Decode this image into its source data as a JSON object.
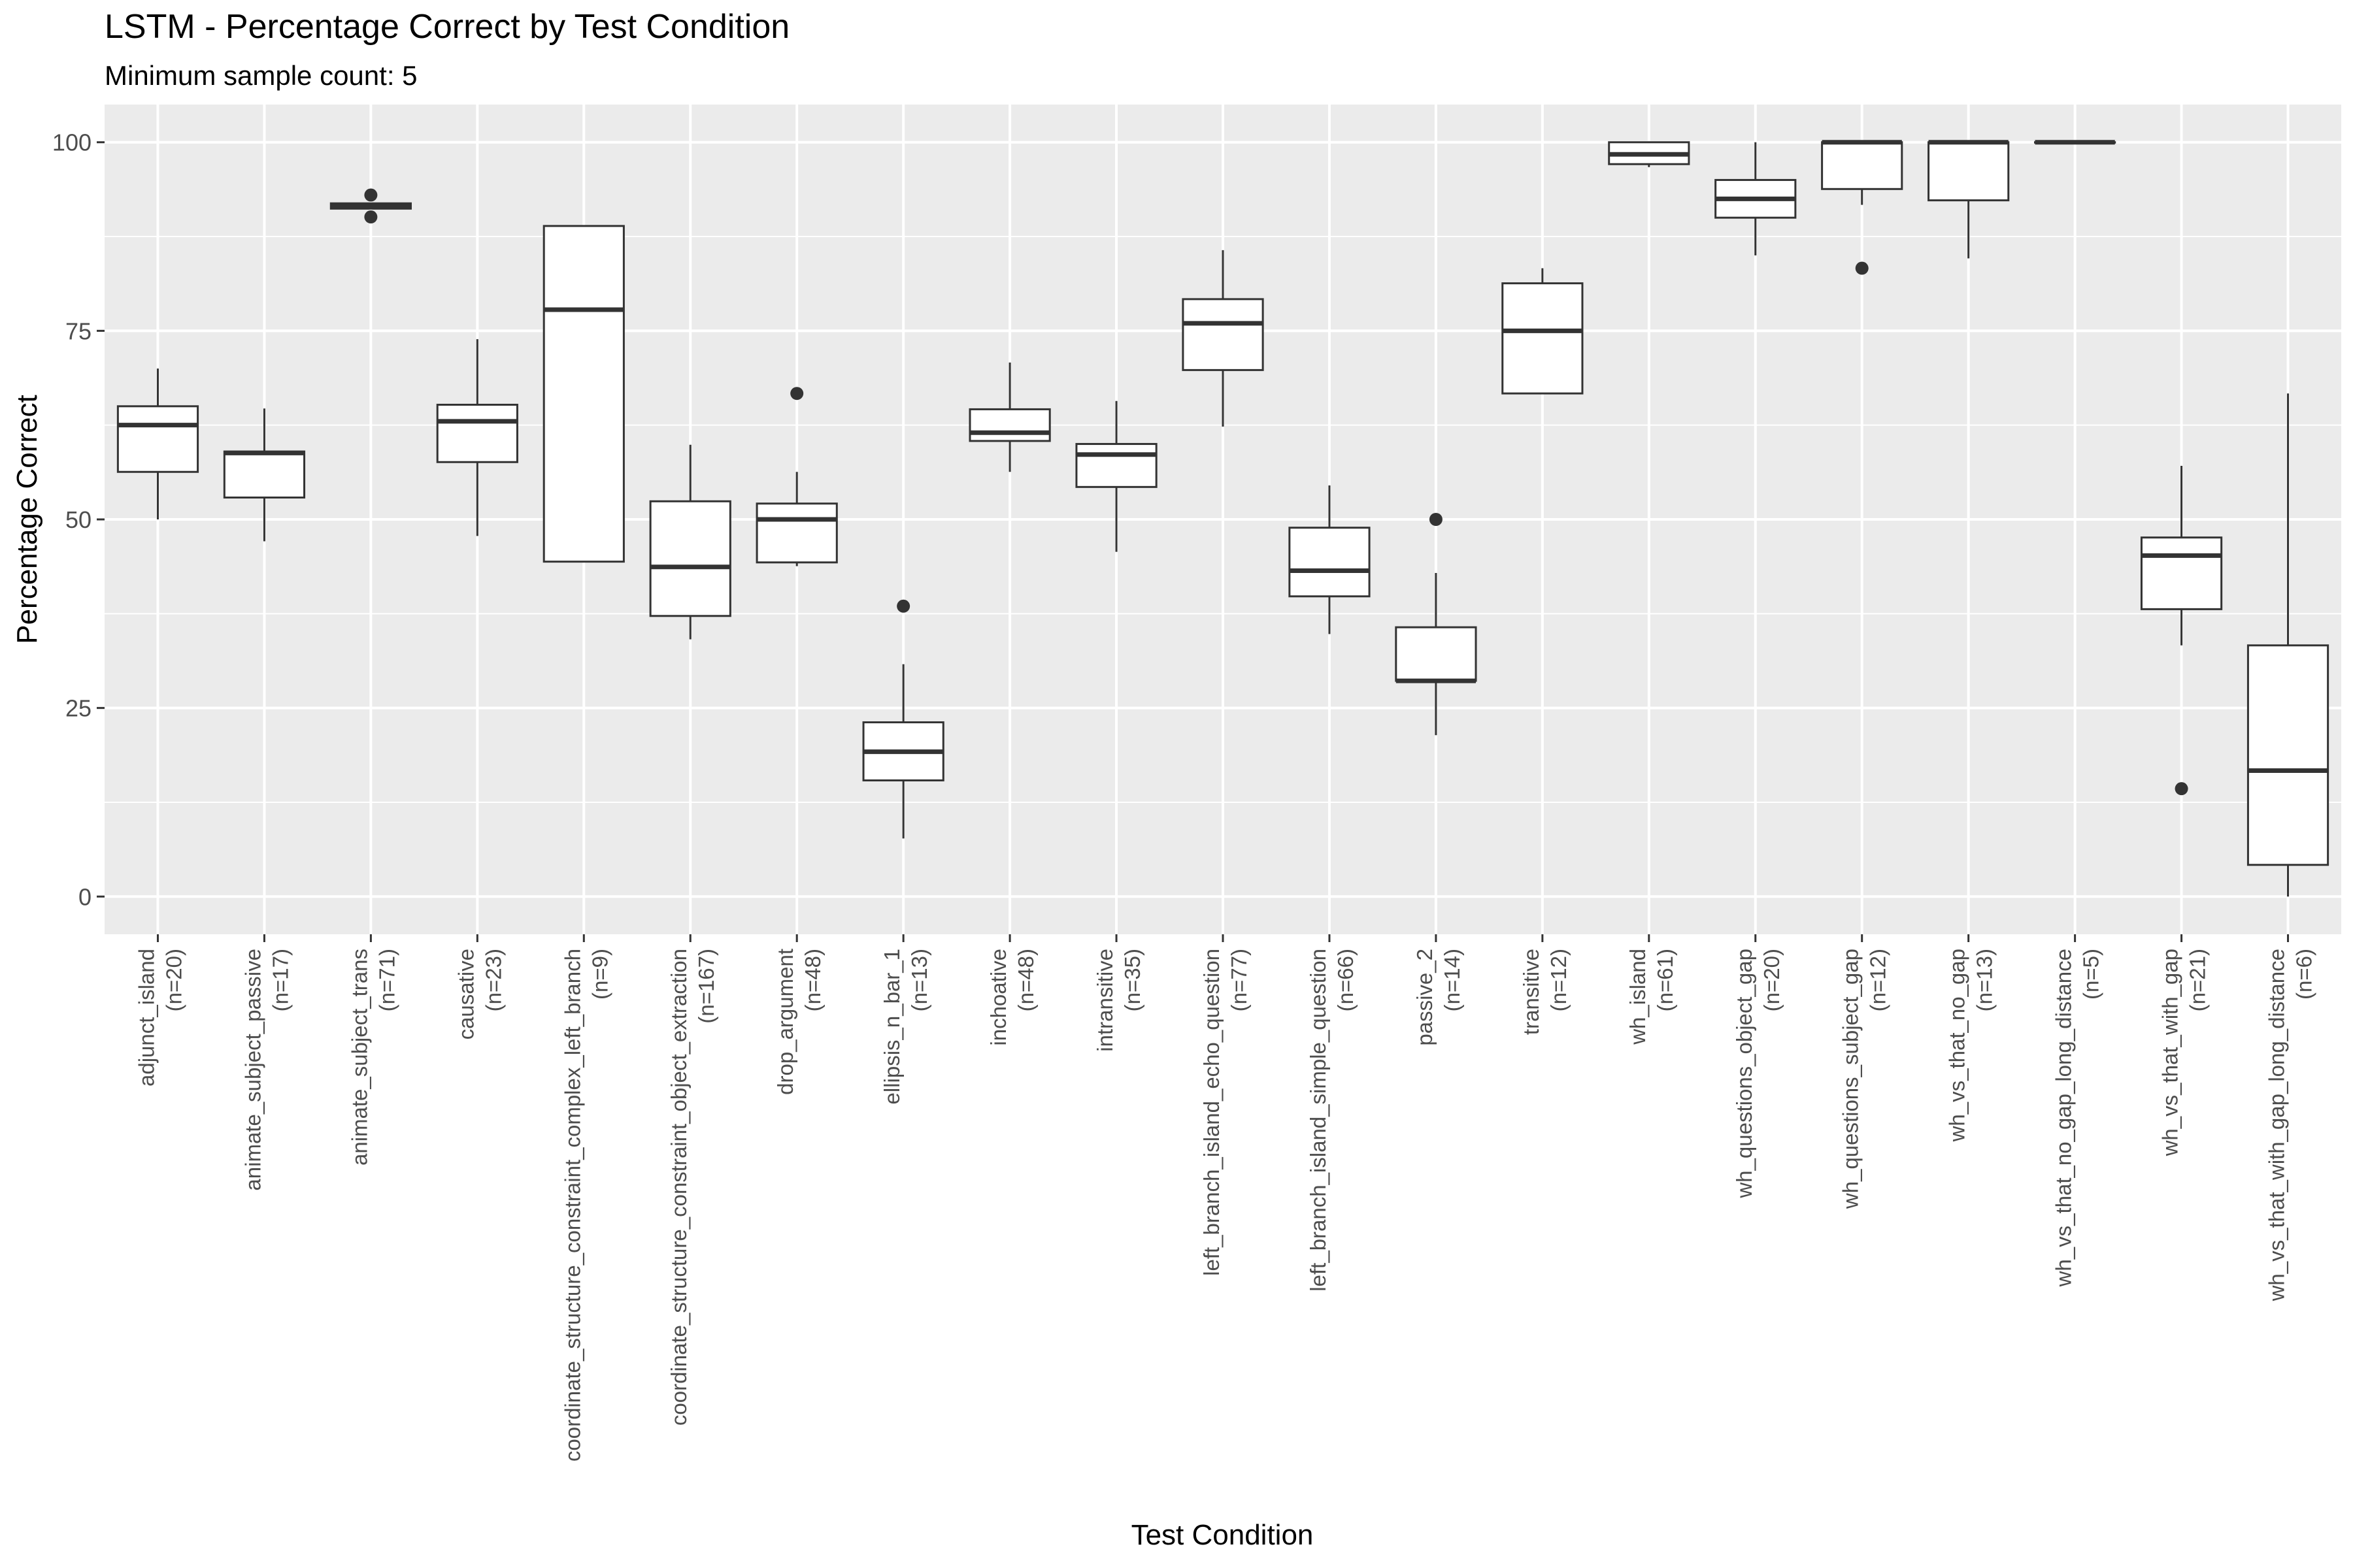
{
  "chart_data": {
    "type": "box",
    "title": "LSTM - Percentage Correct by Test Condition",
    "subtitle": "Minimum sample count: 5",
    "xlabel": "Test Condition",
    "ylabel": "Percentage Correct",
    "ylim": [
      -5,
      105
    ],
    "yticks": [
      0,
      25,
      50,
      75,
      100
    ],
    "grid": true,
    "legend": "none",
    "colors": {
      "panel_background": "#ebebeb",
      "gridline": "#ffffff",
      "box_fill": "#ffffff",
      "box_line": "#333333",
      "tick_text": "#4d4d4d"
    },
    "categories": [
      {
        "name": "adjunct_island",
        "n": "(n=20)",
        "lower_whisker": 50,
        "q1": 56.3,
        "median": 62.5,
        "q3": 65,
        "upper_whisker": 70,
        "outliers": []
      },
      {
        "name": "animate_subject_passive",
        "n": "(n=17)",
        "lower_whisker": 47.1,
        "q1": 52.9,
        "median": 58.8,
        "q3": 59,
        "upper_whisker": 64.7,
        "outliers": []
      },
      {
        "name": "animate_subject_trans",
        "n": "(n=71)",
        "lower_whisker": 91.2,
        "q1": 91.2,
        "median": 91.5,
        "q3": 91.9,
        "upper_whisker": 91.9,
        "outliers": [
          93,
          90.1
        ]
      },
      {
        "name": "causative",
        "n": "(n=23)",
        "lower_whisker": 47.8,
        "q1": 57.6,
        "median": 63,
        "q3": 65.2,
        "upper_whisker": 73.9,
        "outliers": []
      },
      {
        "name": "coordinate_structure_constraint_complex_left_branch",
        "n": "(n=9)",
        "lower_whisker": 44.4,
        "q1": 44.4,
        "median": 77.8,
        "q3": 88.9,
        "upper_whisker": 88.9,
        "outliers": []
      },
      {
        "name": "coordinate_structure_constraint_object_extraction",
        "n": "(n=167)",
        "lower_whisker": 34.1,
        "q1": 37.2,
        "median": 43.7,
        "q3": 52.4,
        "upper_whisker": 59.9,
        "outliers": []
      },
      {
        "name": "drop_argument",
        "n": "(n=48)",
        "lower_whisker": 43.8,
        "q1": 44.3,
        "median": 50,
        "q3": 52.1,
        "upper_whisker": 56.3,
        "outliers": [
          66.7
        ]
      },
      {
        "name": "ellipsis_n_bar_1",
        "n": "(n=13)",
        "lower_whisker": 7.7,
        "q1": 15.4,
        "median": 19.2,
        "q3": 23.1,
        "upper_whisker": 30.8,
        "outliers": [
          38.5
        ]
      },
      {
        "name": "inchoative",
        "n": "(n=48)",
        "lower_whisker": 56.3,
        "q1": 60.4,
        "median": 61.5,
        "q3": 64.6,
        "upper_whisker": 70.8,
        "outliers": []
      },
      {
        "name": "intransitive",
        "n": "(n=35)",
        "lower_whisker": 45.7,
        "q1": 54.3,
        "median": 58.6,
        "q3": 60,
        "upper_whisker": 65.7,
        "outliers": []
      },
      {
        "name": "left_branch_island_echo_question",
        "n": "(n=77)",
        "lower_whisker": 62.3,
        "q1": 69.8,
        "median": 76,
        "q3": 79.2,
        "upper_whisker": 85.7,
        "outliers": []
      },
      {
        "name": "left_branch_island_simple_question",
        "n": "(n=66)",
        "lower_whisker": 34.8,
        "q1": 39.8,
        "median": 43.2,
        "q3": 48.9,
        "upper_whisker": 54.5,
        "outliers": []
      },
      {
        "name": "passive_2",
        "n": "(n=14)",
        "lower_whisker": 21.4,
        "q1": 28.6,
        "median": 28.6,
        "q3": 35.7,
        "upper_whisker": 42.9,
        "outliers": [
          50
        ]
      },
      {
        "name": "transitive",
        "n": "(n=12)",
        "lower_whisker": 66.7,
        "q1": 66.7,
        "median": 75,
        "q3": 81.3,
        "upper_whisker": 83.3,
        "outliers": []
      },
      {
        "name": "wh_island",
        "n": "(n=61)",
        "lower_whisker": 96.7,
        "q1": 97.1,
        "median": 98.4,
        "q3": 100,
        "upper_whisker": 100,
        "outliers": []
      },
      {
        "name": "wh_questions_object_gap",
        "n": "(n=20)",
        "lower_whisker": 85,
        "q1": 90,
        "median": 92.5,
        "q3": 95,
        "upper_whisker": 100,
        "outliers": []
      },
      {
        "name": "wh_questions_subject_gap",
        "n": "(n=12)",
        "lower_whisker": 91.7,
        "q1": 93.8,
        "median": 100,
        "q3": 100,
        "upper_whisker": 100,
        "outliers": [
          83.3
        ]
      },
      {
        "name": "wh_vs_that_no_gap",
        "n": "(n=13)",
        "lower_whisker": 84.6,
        "q1": 92.3,
        "median": 100,
        "q3": 100,
        "upper_whisker": 100,
        "outliers": []
      },
      {
        "name": "wh_vs_that_no_gap_long_distance",
        "n": "(n=5)",
        "lower_whisker": 100,
        "q1": 100,
        "median": 100,
        "q3": 100,
        "upper_whisker": 100,
        "outliers": []
      },
      {
        "name": "wh_vs_that_with_gap",
        "n": "(n=21)",
        "lower_whisker": 33.3,
        "q1": 38.1,
        "median": 45.2,
        "q3": 47.6,
        "upper_whisker": 57.1,
        "outliers": [
          14.3
        ]
      },
      {
        "name": "wh_vs_that_with_gap_long_distance",
        "n": "(n=6)",
        "lower_whisker": 0,
        "q1": 4.2,
        "median": 16.7,
        "q3": 33.3,
        "upper_whisker": 66.7,
        "outliers": []
      }
    ]
  }
}
